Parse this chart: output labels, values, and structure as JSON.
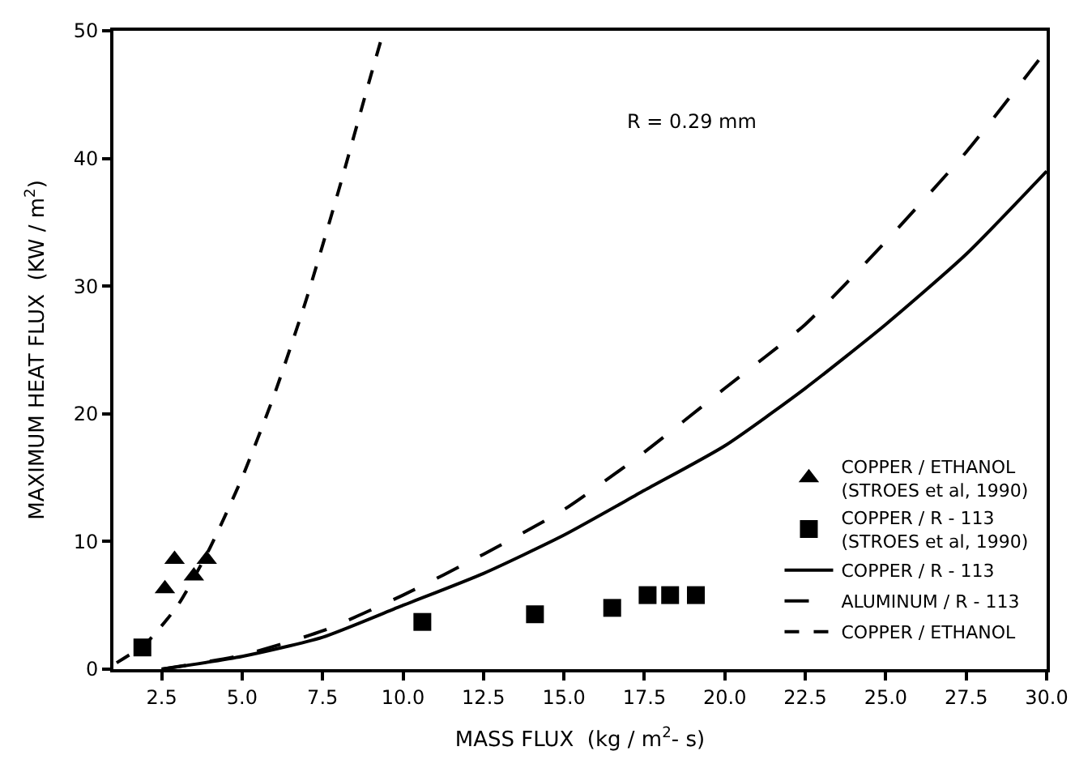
{
  "chart_data": {
    "type": "line",
    "xlabel": "MASS FLUX  (kg / m$^{2}$- s)",
    "ylabel": "MAXIMUM HEAT FLUX  (KW / m$^{2}$)",
    "annotations": [
      "R = 0.29 mm"
    ],
    "xlim": [
      1,
      30
    ],
    "xticks": [
      2.5,
      {
        "value": 5,
        "label": "5.0"
      },
      7.5,
      {
        "value": 10,
        "label": "10.0"
      },
      12.5,
      {
        "value": 15,
        "label": "15.0"
      },
      17.5,
      {
        "value": 20,
        "label": "20.0"
      },
      22.5,
      {
        "value": 25,
        "label": "25.0"
      },
      27.5,
      {
        "value": 30,
        "label": "30.0"
      }
    ],
    "ylim": [
      0,
      50
    ],
    "yticks": [
      0,
      10,
      20,
      30,
      40,
      50
    ],
    "legend": "bottom right",
    "series": [
      {
        "type": "scatter",
        "marker": "triangle",
        "name": "COPPER / ETHANOL\n(STROES et al, 1990)",
        "color": "#000000",
        "x": [
          2.6,
          2.9,
          3.5,
          3.9
        ],
        "values": [
          6.3,
          8.6,
          7.3,
          8.6
        ]
      },
      {
        "type": "scatter",
        "marker": "square",
        "name": "COPPER / R - 113\n(STROES et al, 1990)",
        "color": "#000000",
        "x": [
          1.9,
          10.6,
          14.1,
          16.5,
          17.6,
          18.3,
          19.1
        ],
        "values": [
          1.7,
          3.7,
          4.3,
          4.8,
          5.8,
          5.8,
          5.8
        ]
      },
      {
        "line_style": "solid",
        "name": "COPPER / R - 113",
        "color": "#000000",
        "x": [
          2.5,
          5,
          7.5,
          10,
          12.5,
          15,
          17.5,
          20,
          22.5,
          25,
          27.5,
          30
        ],
        "values": [
          0,
          1.0,
          2.5,
          5,
          7.5,
          10.5,
          14,
          17.5,
          22,
          27,
          32.5,
          39
        ]
      },
      {
        "line_style": "dashed",
        "name": "ALUMINUM / R - 113",
        "color": "#000000",
        "x": [
          2.5,
          5,
          7.5,
          10,
          12.5,
          15,
          17.5,
          20,
          22.5,
          25,
          27.5,
          30
        ],
        "values": [
          0,
          1.1,
          3,
          5.8,
          9,
          12.5,
          17,
          22,
          27,
          33.5,
          40.5,
          48.5
        ]
      },
      {
        "line_style": "dotted",
        "name": "COPPER / ETHANOL",
        "color": "#000000",
        "x": [
          1.1,
          2,
          3,
          4,
          5,
          6,
          7,
          8,
          9,
          9.4
        ],
        "values": [
          0.5,
          2,
          5,
          9.5,
          15,
          21.5,
          29,
          37.5,
          46.5,
          50
        ]
      }
    ]
  }
}
